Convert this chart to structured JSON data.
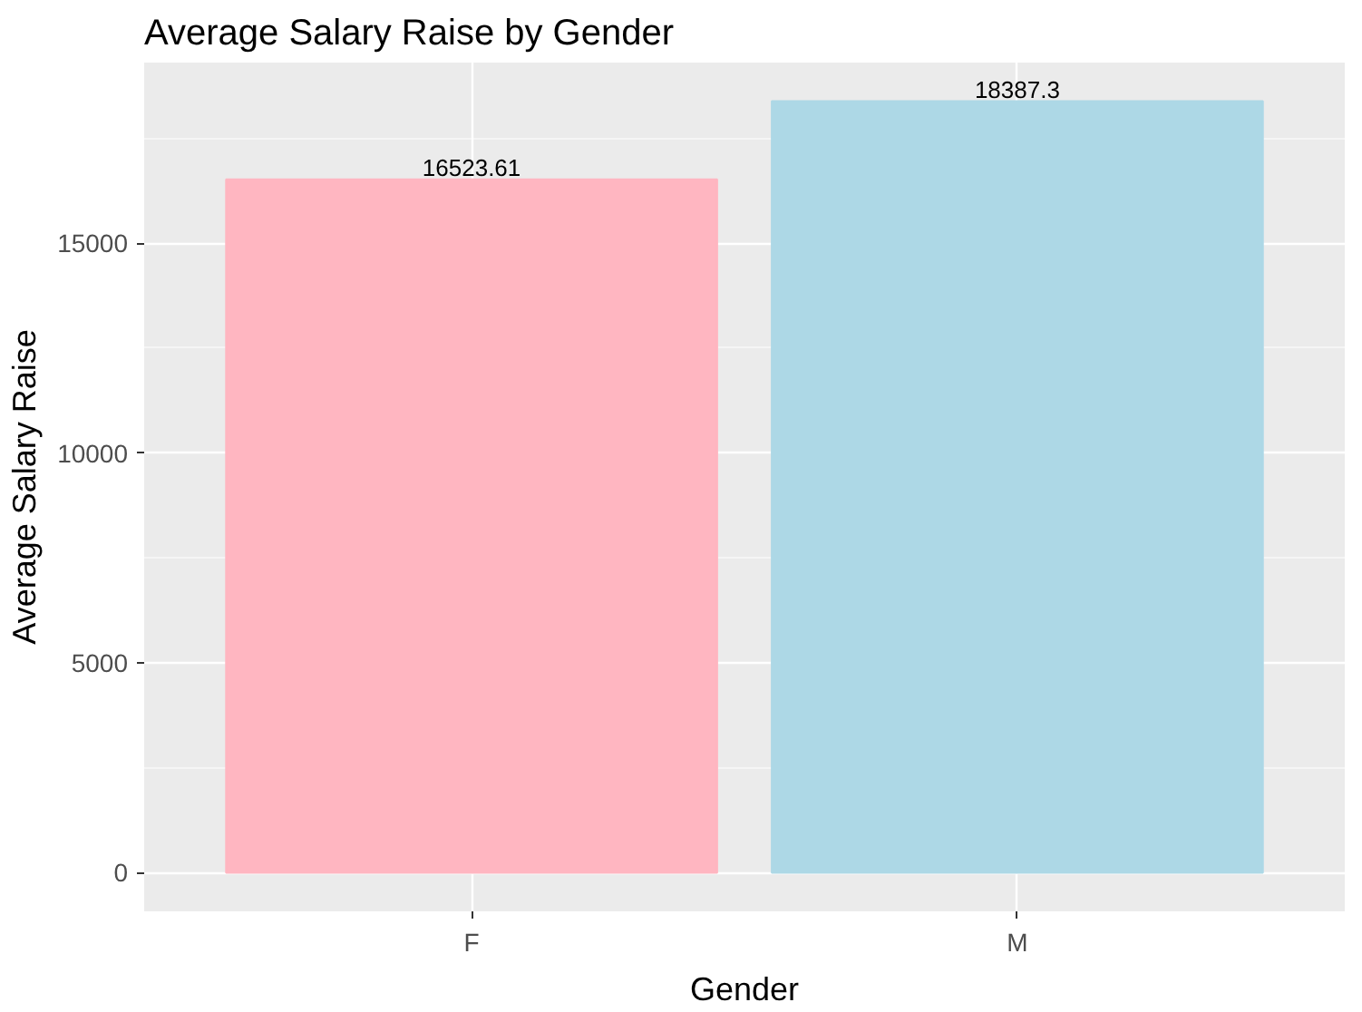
{
  "chart_data": {
    "type": "bar",
    "title": "Average Salary Raise by Gender",
    "xlabel": "Gender",
    "ylabel": "Average Salary Raise",
    "categories": [
      "F",
      "M"
    ],
    "values": [
      16523.61,
      18387.3
    ],
    "colors": [
      "#ffb6c1",
      "#add8e6"
    ],
    "ylim": [
      -919.365,
      19306.665
    ],
    "yticks": [
      0,
      5000,
      10000,
      15000
    ],
    "grid": true,
    "data_labels": true
  }
}
